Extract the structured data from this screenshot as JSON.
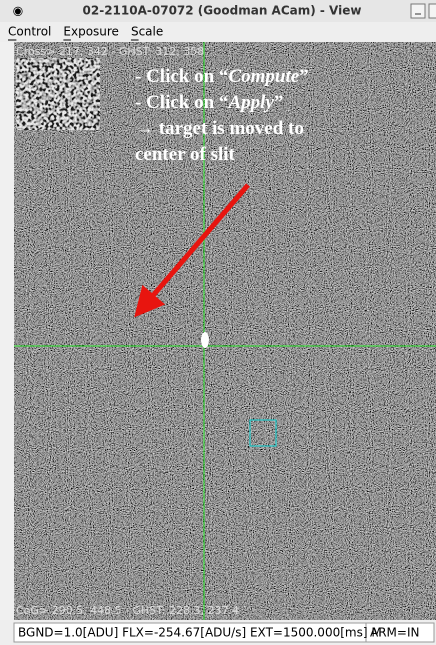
{
  "window": {
    "title": "02-2110A-07072 (Goodman ACam) - View"
  },
  "menu": [
    "Control",
    "Exposure",
    "Scale"
  ],
  "image": {
    "cross_readout": "Cross> 217, 342 - GHST: 312, 358",
    "cog_readout": "CoG> 290.5, 448.5 - GHST: 228.3, 237.4",
    "annotation": [
      {
        "prefix": "- Click on “",
        "emphasis": "Compute",
        "suffix": "”"
      },
      {
        "prefix": "- Click on “",
        "emphasis": "Apply",
        "suffix": "”"
      }
    ],
    "annotation_lines": [
      "→ target is moved to",
      "center of slit"
    ]
  },
  "status": {
    "main": "BGND=1.0[ADU] FLX=-254.67[ADU/s] EXT=1500.000[ms] M",
    "arm": "ARM=IN"
  }
}
